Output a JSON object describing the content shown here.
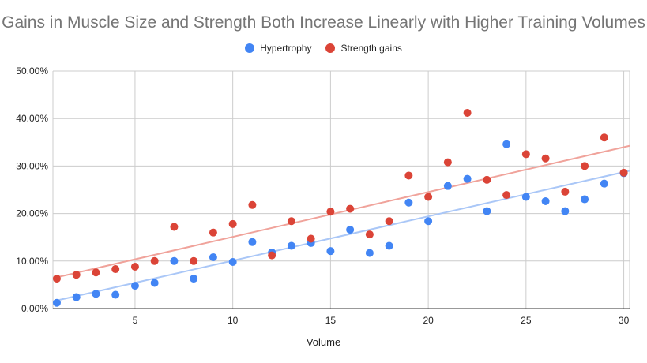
{
  "chart_data": {
    "type": "scatter",
    "title": "Gains in Muscle Size and Strength Both Increase Linearly with Higher Training Volumes",
    "xlabel": "Volume",
    "ylabel": "",
    "xlim": [
      0.8,
      30.3
    ],
    "ylim": [
      0,
      0.5
    ],
    "x_ticks": [
      5,
      10,
      15,
      20,
      25,
      30
    ],
    "y_ticks": [
      0,
      0.1,
      0.2,
      0.3,
      0.4,
      0.5
    ],
    "y_tick_labels": [
      "0.00%",
      "10.00%",
      "20.00%",
      "30.00%",
      "40.00%",
      "50.00%"
    ],
    "grid": true,
    "legend_position": "top",
    "series": [
      {
        "name": "Hypertrophy",
        "color": "#4285f4",
        "trendline_color": "#aac7f7",
        "trendline": "linear",
        "x": [
          1,
          2,
          3,
          4,
          5,
          6,
          7,
          8,
          9,
          10,
          11,
          12,
          13,
          14,
          15,
          16,
          17,
          18,
          19,
          20,
          21,
          22,
          23,
          24,
          25,
          26,
          27,
          28,
          29,
          30
        ],
        "y": [
          0.012,
          0.024,
          0.031,
          0.029,
          0.048,
          0.054,
          0.1,
          0.063,
          0.108,
          0.098,
          0.14,
          0.118,
          0.132,
          0.138,
          0.121,
          0.166,
          0.117,
          0.132,
          0.223,
          0.184,
          0.258,
          0.273,
          0.205,
          0.346,
          0.235,
          0.226,
          0.205,
          0.23,
          0.263,
          0.285
        ]
      },
      {
        "name": "Strength gains",
        "color": "#db4437",
        "trendline_color": "#f0a39b",
        "trendline": "linear",
        "x": [
          1,
          2,
          3,
          4,
          5,
          6,
          7,
          8,
          9,
          10,
          11,
          12,
          13,
          14,
          15,
          16,
          17,
          18,
          19,
          20,
          21,
          22,
          23,
          24,
          25,
          26,
          27,
          28,
          29,
          30
        ],
        "y": [
          0.063,
          0.071,
          0.076,
          0.083,
          0.088,
          0.1,
          0.172,
          0.1,
          0.16,
          0.178,
          0.218,
          0.112,
          0.184,
          0.147,
          0.204,
          0.21,
          0.156,
          0.184,
          0.28,
          0.235,
          0.308,
          0.412,
          0.271,
          0.239,
          0.325,
          0.316,
          0.246,
          0.3,
          0.36,
          0.286
        ]
      }
    ]
  }
}
